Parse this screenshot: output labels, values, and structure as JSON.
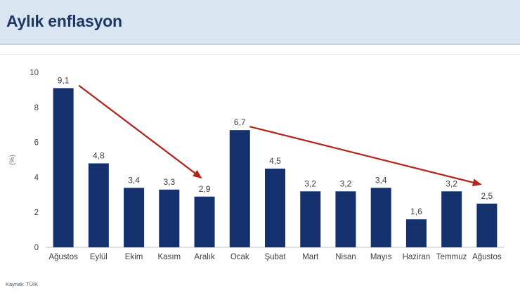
{
  "header": {
    "title": "Aylık enflasyon"
  },
  "source": "Kaynak: TÜİK",
  "colors": {
    "header_bg": "#d9e6f2",
    "title_text": "#1e3765",
    "bar": "#14316e",
    "arrow": "#b2271d",
    "axis_text": "#404040",
    "label_text": "#3d3d3d",
    "baseline": "#c9c9c9"
  },
  "chart_data": {
    "type": "bar",
    "title": "Aylık enflasyon",
    "categories": [
      "Ağustos",
      "Eylül",
      "Ekim",
      "Kasım",
      "Aralık",
      "Ocak",
      "Şubat",
      "Mart",
      "Nisan",
      "Mayıs",
      "Haziran",
      "Temmuz",
      "Ağustos"
    ],
    "values": [
      9.1,
      4.8,
      3.4,
      3.3,
      2.9,
      6.7,
      4.5,
      3.2,
      3.2,
      3.4,
      1.6,
      3.2,
      2.5
    ],
    "value_labels": [
      "9,1",
      "4,8",
      "3,4",
      "3,3",
      "2,9",
      "6,7",
      "4,5",
      "3,2",
      "3,2",
      "3,4",
      "1,6",
      "3,2",
      "2,5"
    ],
    "xlabel": "",
    "ylabel": "(%)",
    "ylim": [
      0,
      10
    ],
    "yticks": [
      0,
      2,
      4,
      6,
      8,
      10
    ],
    "grid": false,
    "legend": false,
    "annotations": [
      {
        "type": "arrow",
        "from": {
          "cat": 0.44,
          "val": 9.25
        },
        "to": {
          "cat": 3.9,
          "val": 3.98
        }
      },
      {
        "type": "arrow",
        "from": {
          "cat": 5.28,
          "val": 6.9
        },
        "to": {
          "cat": 11.82,
          "val": 3.6
        }
      }
    ]
  }
}
